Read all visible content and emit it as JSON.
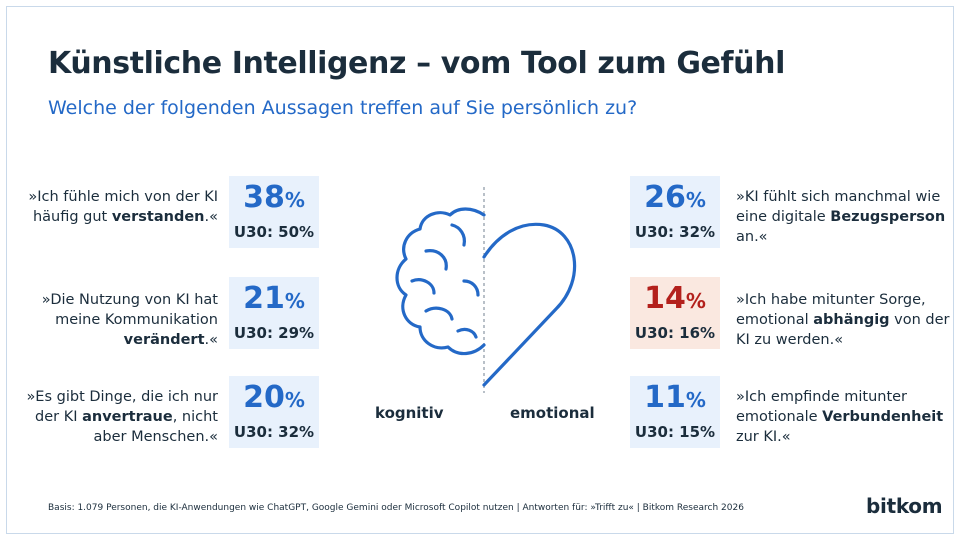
{
  "title": "Künstliche Intelligenz – vom Tool zum Gefühl",
  "subtitle": "Welche der folgenden Aussagen treffen auf Sie persönlich zu?",
  "chart_data": {
    "type": "table",
    "unit": "%",
    "categories": [
      "kognitiv",
      "emotional"
    ],
    "items": [
      {
        "group": "kognitiv",
        "pre": "»Ich fühle mich von der KI häufig gut ",
        "bold": "verstanden",
        "post": ".«",
        "value": 38,
        "u30_label": "U30: 50%",
        "u30": 50
      },
      {
        "group": "kognitiv",
        "pre": "»Die Nutzung von KI hat meine Kommunikation ",
        "bold": "verändert",
        "post": ".«",
        "value": 21,
        "u30_label": "U30: 29%",
        "u30": 29
      },
      {
        "group": "kognitiv",
        "pre": "»Es gibt Dinge, die ich nur der KI ",
        "bold": "anvertraue",
        "post": ", nicht aber Menschen.«",
        "value": 20,
        "u30_label": "U30: 32%",
        "u30": 32
      },
      {
        "group": "emotional",
        "pre": "»KI fühlt sich manchmal wie eine digitale ",
        "bold": "Bezugsperson",
        "post": " an.«",
        "value": 26,
        "u30_label": "U30: 32%",
        "u30": 32
      },
      {
        "group": "emotional",
        "pre": "»Ich habe mitunter Sorge, emotional ",
        "bold": "abhängig",
        "post": " von der KI zu werden.«",
        "value": 14,
        "u30_label": "U30: 16%",
        "u30": 16,
        "highlight": true
      },
      {
        "group": "emotional",
        "pre": "»Ich empfinde mitunter emotionale ",
        "bold": "Verbundenheit",
        "post": " zur KI.«",
        "value": 11,
        "u30_label": "U30: 15%",
        "u30": 15
      }
    ]
  },
  "source": "Basis: 1.079 Personen, die KI-Anwendungen wie ChatGPT, Google Gemini oder Microsoft Copilot nutzen | Antworten für: »Trifft zu« | Bitkom Research 2026",
  "logo": "bitkom",
  "colors": {
    "accent": "#2469c7",
    "warn": "#b3201c",
    "box": "#e8f1fc",
    "box_warn": "#fae8e0",
    "text": "#1b2d3c"
  }
}
